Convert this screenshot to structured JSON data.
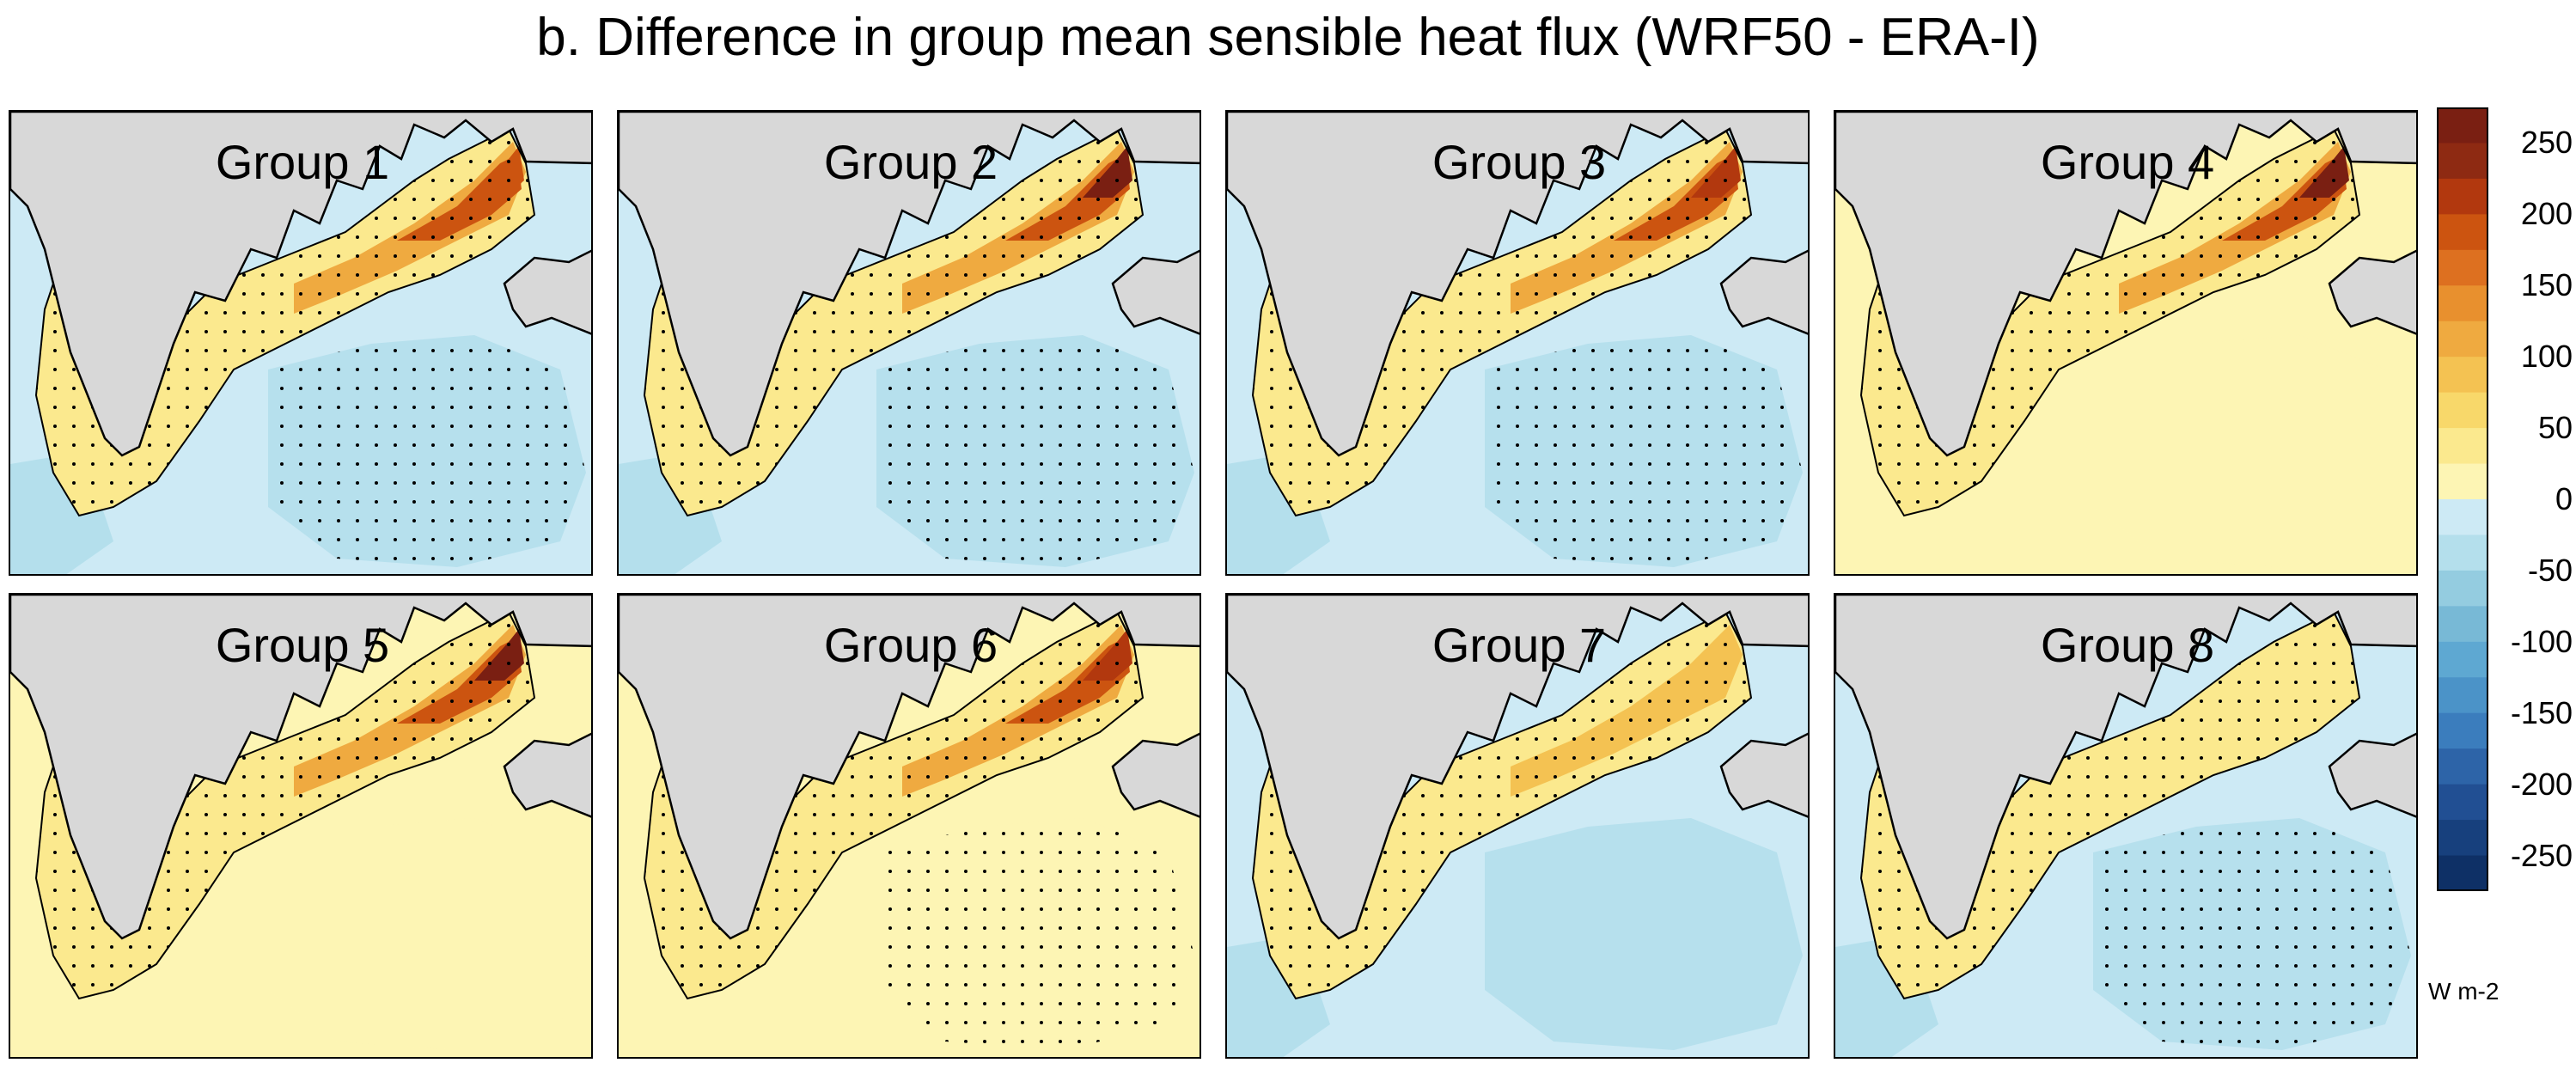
{
  "title": "b. Difference in group mean sensible heat flux (WRF50 - ERA-I)",
  "colors": {
    "land": "#d8d8d8",
    "neg_light": "#cdeaf5",
    "neg_mid": "#b4dfec",
    "pos_light": "#fdf5b4",
    "pos_mid": "#f8d86a",
    "pos_high": "#f0a53b",
    "pos_top": "#8b2a12"
  },
  "chart_data": {
    "type": "heatmap",
    "title": "b. Difference in group mean sensible heat flux (WRF50 - ERA-I)",
    "colorbar": {
      "units": "W m-2",
      "ticks": [
        "250",
        "200",
        "150",
        "100",
        "50",
        "0",
        "-50",
        "-100",
        "-150",
        "-200",
        "-250"
      ],
      "levels": [
        275,
        250,
        225,
        200,
        175,
        150,
        125,
        100,
        75,
        50,
        25,
        0,
        -25,
        -50,
        -75,
        -100,
        -125,
        -150,
        -175,
        -200,
        -225,
        -250,
        -275
      ],
      "colors": [
        "#7a1f12",
        "#8e2a12",
        "#b2380e",
        "#cc5410",
        "#dd7020",
        "#e8902e",
        "#efaa40",
        "#f4c252",
        "#f8d86a",
        "#fbe98e",
        "#fdf5b4",
        "#cdeaf5",
        "#b4dfec",
        "#94cce0",
        "#78b9d6",
        "#5ea8d2",
        "#4b93c8",
        "#3b7dbd",
        "#2d64a8",
        "#214f93",
        "#17407d",
        "#0e3066"
      ]
    },
    "panels": [
      {
        "label": "Group 1",
        "shelf_max": 200,
        "offshore_mean": -25,
        "stippled_offshore": true
      },
      {
        "label": "Group 2",
        "shelf_max": 275,
        "offshore_mean": -25,
        "stippled_offshore": true
      },
      {
        "label": "Group 3",
        "shelf_max": 225,
        "offshore_mean": -25,
        "stippled_offshore": true
      },
      {
        "label": "Group 4",
        "shelf_max": 275,
        "offshore_mean": 25,
        "stippled_offshore": false
      },
      {
        "label": "Group 5",
        "shelf_max": 275,
        "offshore_mean": 25,
        "stippled_offshore": false
      },
      {
        "label": "Group 6",
        "shelf_max": 225,
        "offshore_mean": 25,
        "stippled_offshore": true
      },
      {
        "label": "Group 7",
        "shelf_max": 100,
        "offshore_mean": -25,
        "stippled_offshore": false
      },
      {
        "label": "Group 8",
        "shelf_max": 50,
        "offshore_mean": -25,
        "stippled_offshore": true
      }
    ]
  }
}
